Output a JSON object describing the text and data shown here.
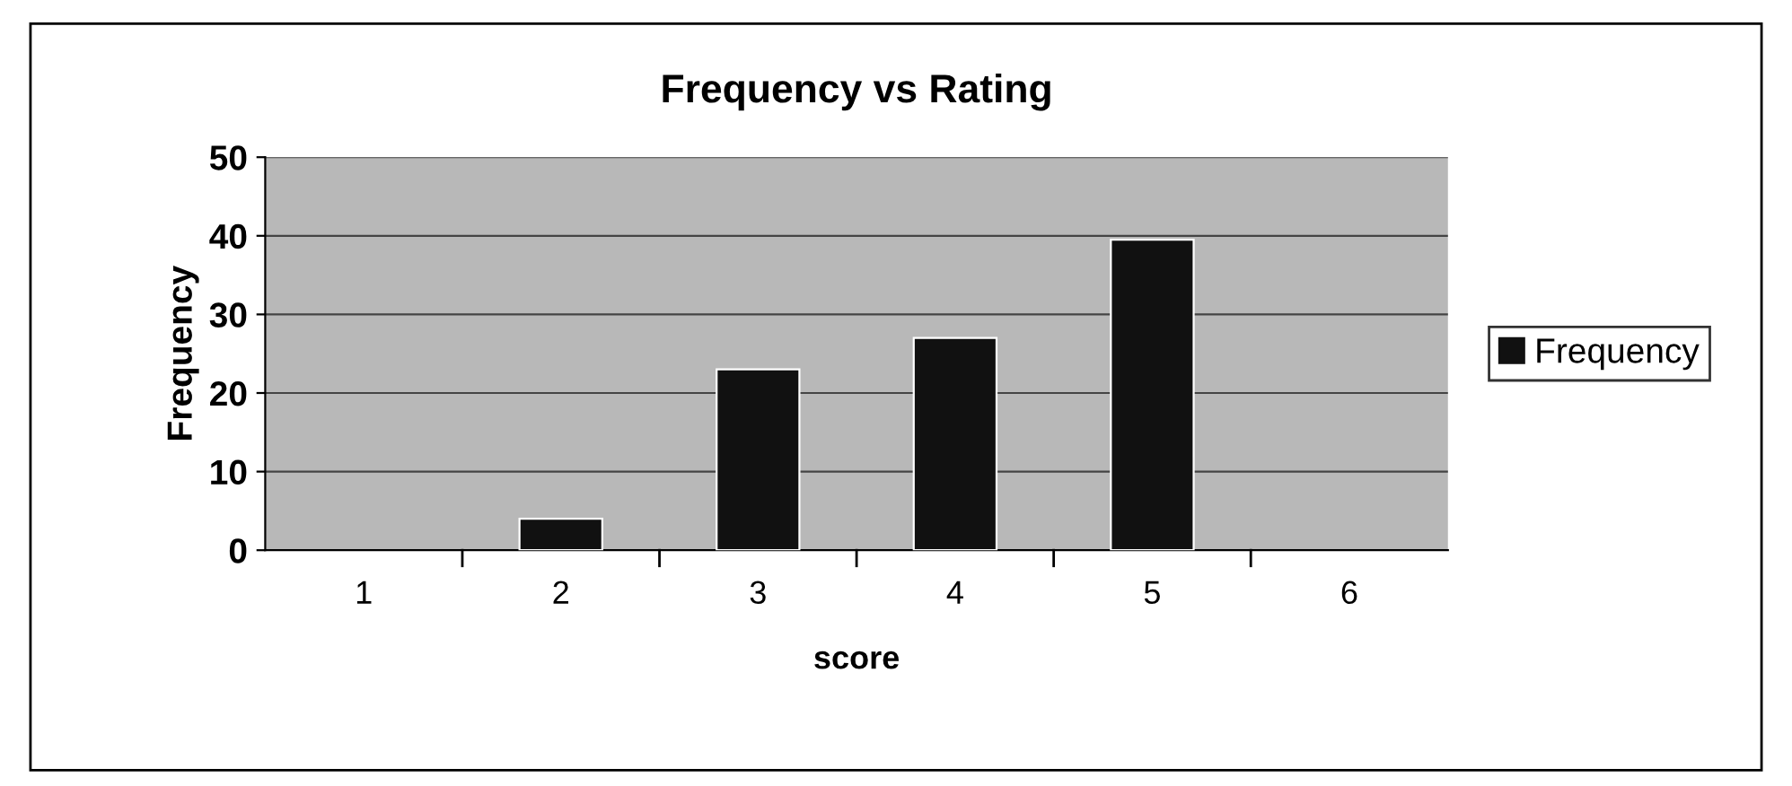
{
  "chart_data": {
    "type": "bar",
    "title": "Frequency vs Rating",
    "xlabel": "score",
    "ylabel": "Frequency",
    "categories": [
      "1",
      "2",
      "3",
      "4",
      "5",
      "6"
    ],
    "series": [
      {
        "name": "Frequency",
        "color": "#111111",
        "values": [
          null,
          4,
          23,
          27,
          39.5,
          null
        ]
      }
    ],
    "ylim": [
      0,
      50
    ],
    "yticks": [
      0,
      10,
      20,
      30,
      40,
      50
    ],
    "grid": "y",
    "legend": "right"
  }
}
